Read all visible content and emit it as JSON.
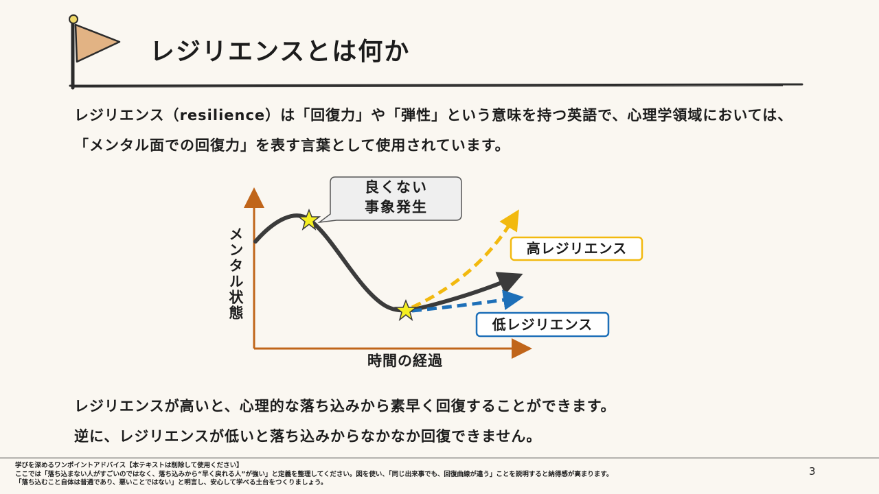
{
  "header": {
    "title": "レジリエンスとは何か"
  },
  "intro": {
    "text": "レジリエンス（resilience）は「回復力」や「弾性」という意味を持つ英語で、心理学領域においては、「メンタル面での回復力」を表す言葉として使用されています。"
  },
  "diagram": {
    "callout": "良くない\n事象発生",
    "high_label": "高レジリエンス",
    "low_label": "低レジリエンス",
    "y_axis_label": "メンタル状態",
    "x_axis_label": "時間の経過",
    "colors": {
      "axis": "#c0651a",
      "curve": "#3b3b3b",
      "high": "#f2b90f",
      "low": "#1d6fb8",
      "star": "#f5ef22"
    }
  },
  "statements": {
    "line1": "レジリエンスが高いと、心理的な落ち込みから素早く回復することができます。",
    "line2": "逆に、レジリエンスが低いと落ち込みからなかなか回復できません。"
  },
  "footer": {
    "line1": "学びを深めるワンポイントアドバイス【本テキストは削除して使用ください】",
    "line2": "ここでは「落ち込まない人がすごいのではなく、落ち込みから“早く戻れる人”が強い」と定義を整理してください。図を使い、「同じ出来事でも、回復曲線が違う」ことを説明すると納得感が高まります。",
    "line3": "「落ち込むこと自体は普通であり、悪いことではない」と明言し、安心して学べる土台をつくりましょう。",
    "page_number": "3"
  }
}
